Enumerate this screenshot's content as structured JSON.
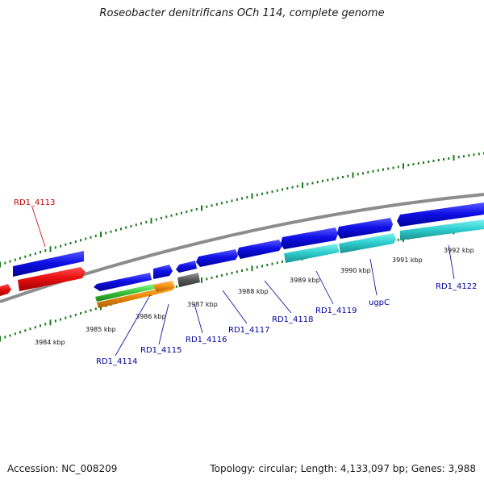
{
  "title": "Roseobacter denitrificans OCh 114, complete genome",
  "footer": {
    "accession": "Accession: NC_008209",
    "topology": "Topology: circular; Length: 4,133,097 bp; Genes: 3,988"
  },
  "colors": {
    "backbone": "#8c8c8c",
    "tick": "#1a7a1a",
    "forward_cds": "#1010e8",
    "reverse_cds": "#e81010",
    "label_blue": "#0000a0",
    "label_red": "#c00000",
    "cyan": "#30d0d0",
    "orange": "#f29010",
    "green": "#38c038",
    "gray": "#555555"
  },
  "kbp_labels": [
    "3984 kbp",
    "3985 kbp",
    "3986 kbp",
    "3987 kbp",
    "3988 kbp",
    "3989 kbp",
    "3990 kbp",
    "3991 kbp",
    "3992 kbp"
  ],
  "gene_labels": [
    {
      "text": "RD1_4113",
      "strand": "reverse",
      "color": "#c00000"
    },
    {
      "text": "RD1_4114",
      "strand": "forward",
      "color": "#0000a0"
    },
    {
      "text": "RD1_4115",
      "strand": "forward",
      "color": "#0000a0"
    },
    {
      "text": "RD1_4116",
      "strand": "forward",
      "color": "#0000a0"
    },
    {
      "text": "RD1_4117",
      "strand": "forward",
      "color": "#0000a0"
    },
    {
      "text": "RD1_4118",
      "strand": "forward",
      "color": "#0000a0"
    },
    {
      "text": "RD1_4119",
      "strand": "forward",
      "color": "#0000a0"
    },
    {
      "text": "ugpC",
      "strand": "forward",
      "color": "#0000a0"
    },
    {
      "text": "RD1_4122",
      "strand": "forward",
      "color": "#0000a0"
    }
  ]
}
